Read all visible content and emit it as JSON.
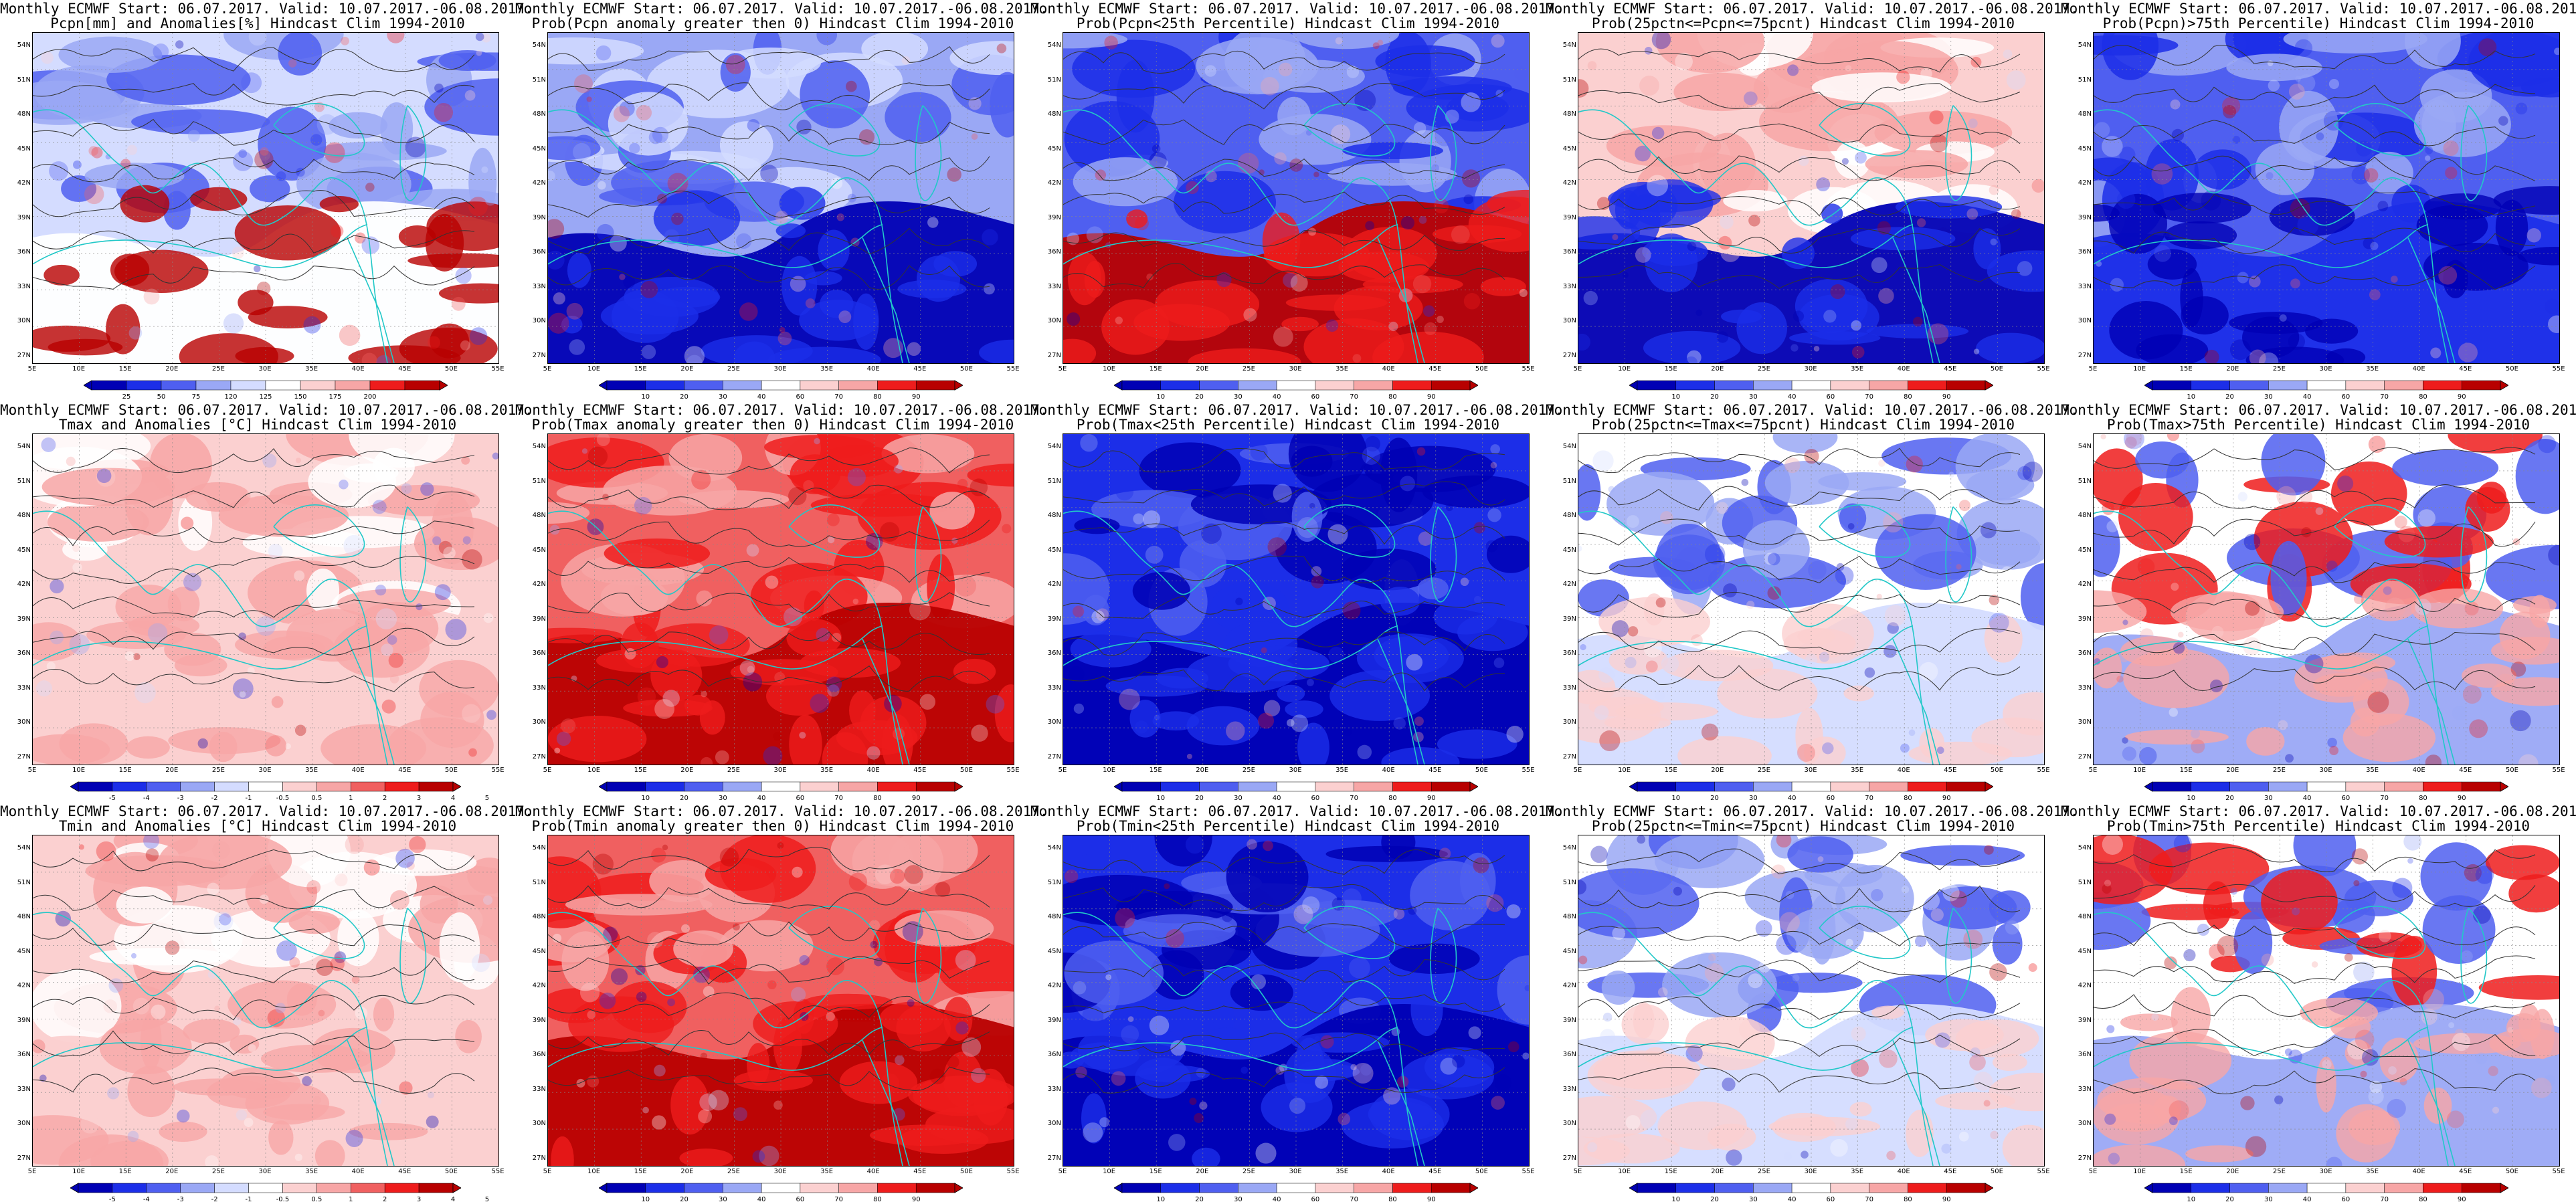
{
  "title_line1": "Monthly ECMWF Start: 06.07.2017. Valid: 10.07.2017.-06.08.2017.",
  "lat_labels": [
    "54N",
    "51N",
    "48N",
    "45N",
    "42N",
    "39N",
    "36N",
    "33N",
    "30N",
    "27N"
  ],
  "lon_labels": [
    "5E",
    "10E",
    "15E",
    "20E",
    "25E",
    "30E",
    "35E",
    "40E",
    "45E",
    "50E",
    "55E"
  ],
  "anom_pcpn_ticks": [
    "25",
    "50",
    "75",
    "120",
    "125",
    "150",
    "175",
    "200"
  ],
  "anom_temp_ticks": [
    "-5",
    "-4",
    "-3",
    "-2",
    "-1",
    "-0.5",
    "0.5",
    "1",
    "2",
    "3",
    "4",
    "5"
  ],
  "prob_ticks": [
    "10",
    "20",
    "30",
    "40",
    "60",
    "70",
    "80",
    "90"
  ],
  "colors": {
    "red_dark": "#b80000",
    "red": "#ee1c1c",
    "red_mid": "#f06060",
    "red_light": "#f7a6a6",
    "pink": "#fbd0d0",
    "white": "#ffffff",
    "blue_pale": "#d4dcff",
    "blue_light": "#9aa8f5",
    "blue": "#4f5ff0",
    "blue_mid": "#1c2ee8",
    "blue_dark": "#0000b4",
    "coast": "#22c8c8",
    "contour": "#333333"
  },
  "panels": [
    {
      "row": 0,
      "col": 0,
      "title2": "Pcpn[mm] and Anomalies[%] Hindcast Clim 1994-2010",
      "scale": "pcpn",
      "scheme": "pcpn_anom"
    },
    {
      "row": 0,
      "col": 1,
      "title2": "Prob(Pcpn anomaly greater then 0) Hindcast Clim 1994-2010",
      "scale": "prob",
      "scheme": "blue_south"
    },
    {
      "row": 0,
      "col": 2,
      "title2": "Prob(Pcpn<25th Percentile) Hindcast Clim 1994-2010",
      "scale": "prob",
      "scheme": "red_south"
    },
    {
      "row": 0,
      "col": 3,
      "title2": "Prob(25pctn<=Pcpn<=75pcnt) Hindcast Clim 1994-2010",
      "scale": "prob",
      "scheme": "mid_blue_south"
    },
    {
      "row": 0,
      "col": 4,
      "title2": "Prob(Pcpn)>75th Percentile) Hindcast Clim 1994-2010",
      "scale": "prob",
      "scheme": "blue_all"
    },
    {
      "row": 1,
      "col": 0,
      "title2": "Tmax and Anomalies [°C] Hindcast Clim 1994-2010",
      "scale": "temp",
      "scheme": "light_red"
    },
    {
      "row": 1,
      "col": 1,
      "title2": "Prob(Tmax anomaly greater then 0) Hindcast Clim 1994-2010",
      "scale": "prob",
      "scheme": "red_all"
    },
    {
      "row": 1,
      "col": 2,
      "title2": "Prob(Tmax<25th Percentile) Hindcast Clim 1994-2010",
      "scale": "prob",
      "scheme": "blue_deep"
    },
    {
      "row": 1,
      "col": 3,
      "title2": "Prob(25pctn<=Tmax<=75pcnt) Hindcast Clim 1994-2010",
      "scale": "prob",
      "scheme": "mixed"
    },
    {
      "row": 1,
      "col": 4,
      "title2": "Prob(Tmax>75th Percentile) Hindcast Clim 1994-2010",
      "scale": "prob",
      "scheme": "mixed_red"
    },
    {
      "row": 2,
      "col": 0,
      "title2": "Tmin and Anomalies [°C] Hindcast Clim 1994-2010",
      "scale": "temp",
      "scheme": "light_red"
    },
    {
      "row": 2,
      "col": 1,
      "title2": "Prob(Tmin anomaly greater then 0) Hindcast Clim 1994-2010",
      "scale": "prob",
      "scheme": "red_all"
    },
    {
      "row": 2,
      "col": 2,
      "title2": "Prob(Tmin<25th Percentile) Hindcast Clim 1994-2010",
      "scale": "prob",
      "scheme": "blue_deep"
    },
    {
      "row": 2,
      "col": 3,
      "title2": "Prob(25pctn<=Tmin<=75pcnt) Hindcast Clim 1994-2010",
      "scale": "prob",
      "scheme": "mixed"
    },
    {
      "row": 2,
      "col": 4,
      "title2": "Prob(Tmin>75th Percentile) Hindcast Clim 1994-2010",
      "scale": "prob",
      "scheme": "mixed_red"
    }
  ]
}
